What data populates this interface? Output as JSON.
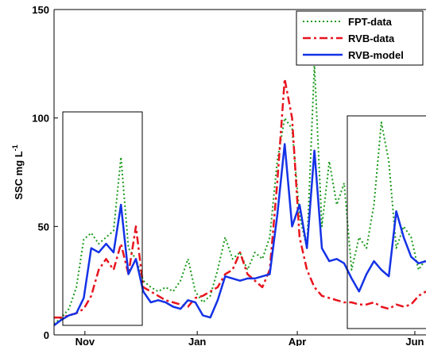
{
  "chart_data": {
    "type": "line",
    "ylabel": "SSC mg L",
    "ylabel_superscript": "-1",
    "x": [
      0,
      2,
      4,
      6,
      8,
      10,
      12,
      14,
      16,
      18,
      20,
      22,
      24,
      26,
      28,
      30,
      32,
      34,
      36,
      38,
      40,
      42,
      44,
      46,
      48,
      50,
      52,
      54,
      56,
      58,
      60,
      62,
      64,
      66,
      68,
      70,
      72,
      74,
      76,
      78,
      80,
      82,
      84,
      86,
      88,
      90,
      92,
      94,
      96,
      98,
      100
    ],
    "xlim": [
      0,
      100
    ],
    "xticks": [
      {
        "value": 8.3,
        "label": "Nov"
      },
      {
        "value": 38.5,
        "label": "Jan"
      },
      {
        "value": 65.4,
        "label": "Apr"
      },
      {
        "value": 97,
        "label": "Jun"
      }
    ],
    "ylim": [
      0,
      150
    ],
    "yticks": [
      0,
      50,
      100,
      150
    ],
    "legend": "upper right",
    "series": [
      {
        "name": "FPT-data",
        "color": "#1a9a1a",
        "linestyle": "dotted",
        "values": [
          5,
          8,
          12,
          22,
          44,
          47,
          42,
          45,
          48,
          82,
          40,
          35,
          25,
          22,
          20,
          22,
          20,
          25,
          35,
          20,
          15,
          18,
          30,
          45,
          35,
          38,
          30,
          38,
          35,
          45,
          80,
          100,
          95,
          55,
          40,
          125,
          50,
          80,
          60,
          70,
          30,
          45,
          40,
          60,
          98,
          80,
          40,
          50,
          45,
          30,
          35
        ]
      },
      {
        "name": "RVB-data",
        "color": "#e8141e",
        "linestyle": "dashdot",
        "values": [
          8,
          8,
          9,
          10,
          12,
          18,
          30,
          35,
          30,
          42,
          28,
          50,
          22,
          20,
          18,
          16,
          15,
          14,
          13,
          17,
          18,
          20,
          22,
          28,
          30,
          38,
          28,
          25,
          22,
          30,
          70,
          118,
          100,
          45,
          30,
          22,
          18,
          17,
          16,
          15,
          15,
          14,
          14,
          15,
          13,
          12,
          14,
          13,
          14,
          18,
          20
        ]
      },
      {
        "name": "RVB-model",
        "color": "#1432e6",
        "linestyle": "solid",
        "values": [
          4.4,
          7,
          9,
          10,
          17,
          40,
          38,
          42,
          38,
          60,
          28,
          35,
          20,
          15,
          16,
          15,
          13,
          12,
          16,
          15,
          9,
          8,
          16,
          27,
          26,
          25,
          26,
          26,
          27,
          28,
          55,
          88,
          50,
          60,
          40,
          85,
          40,
          34,
          35,
          33,
          26,
          20,
          28,
          34,
          30,
          27,
          57,
          45,
          36,
          33,
          34
        ]
      }
    ]
  }
}
